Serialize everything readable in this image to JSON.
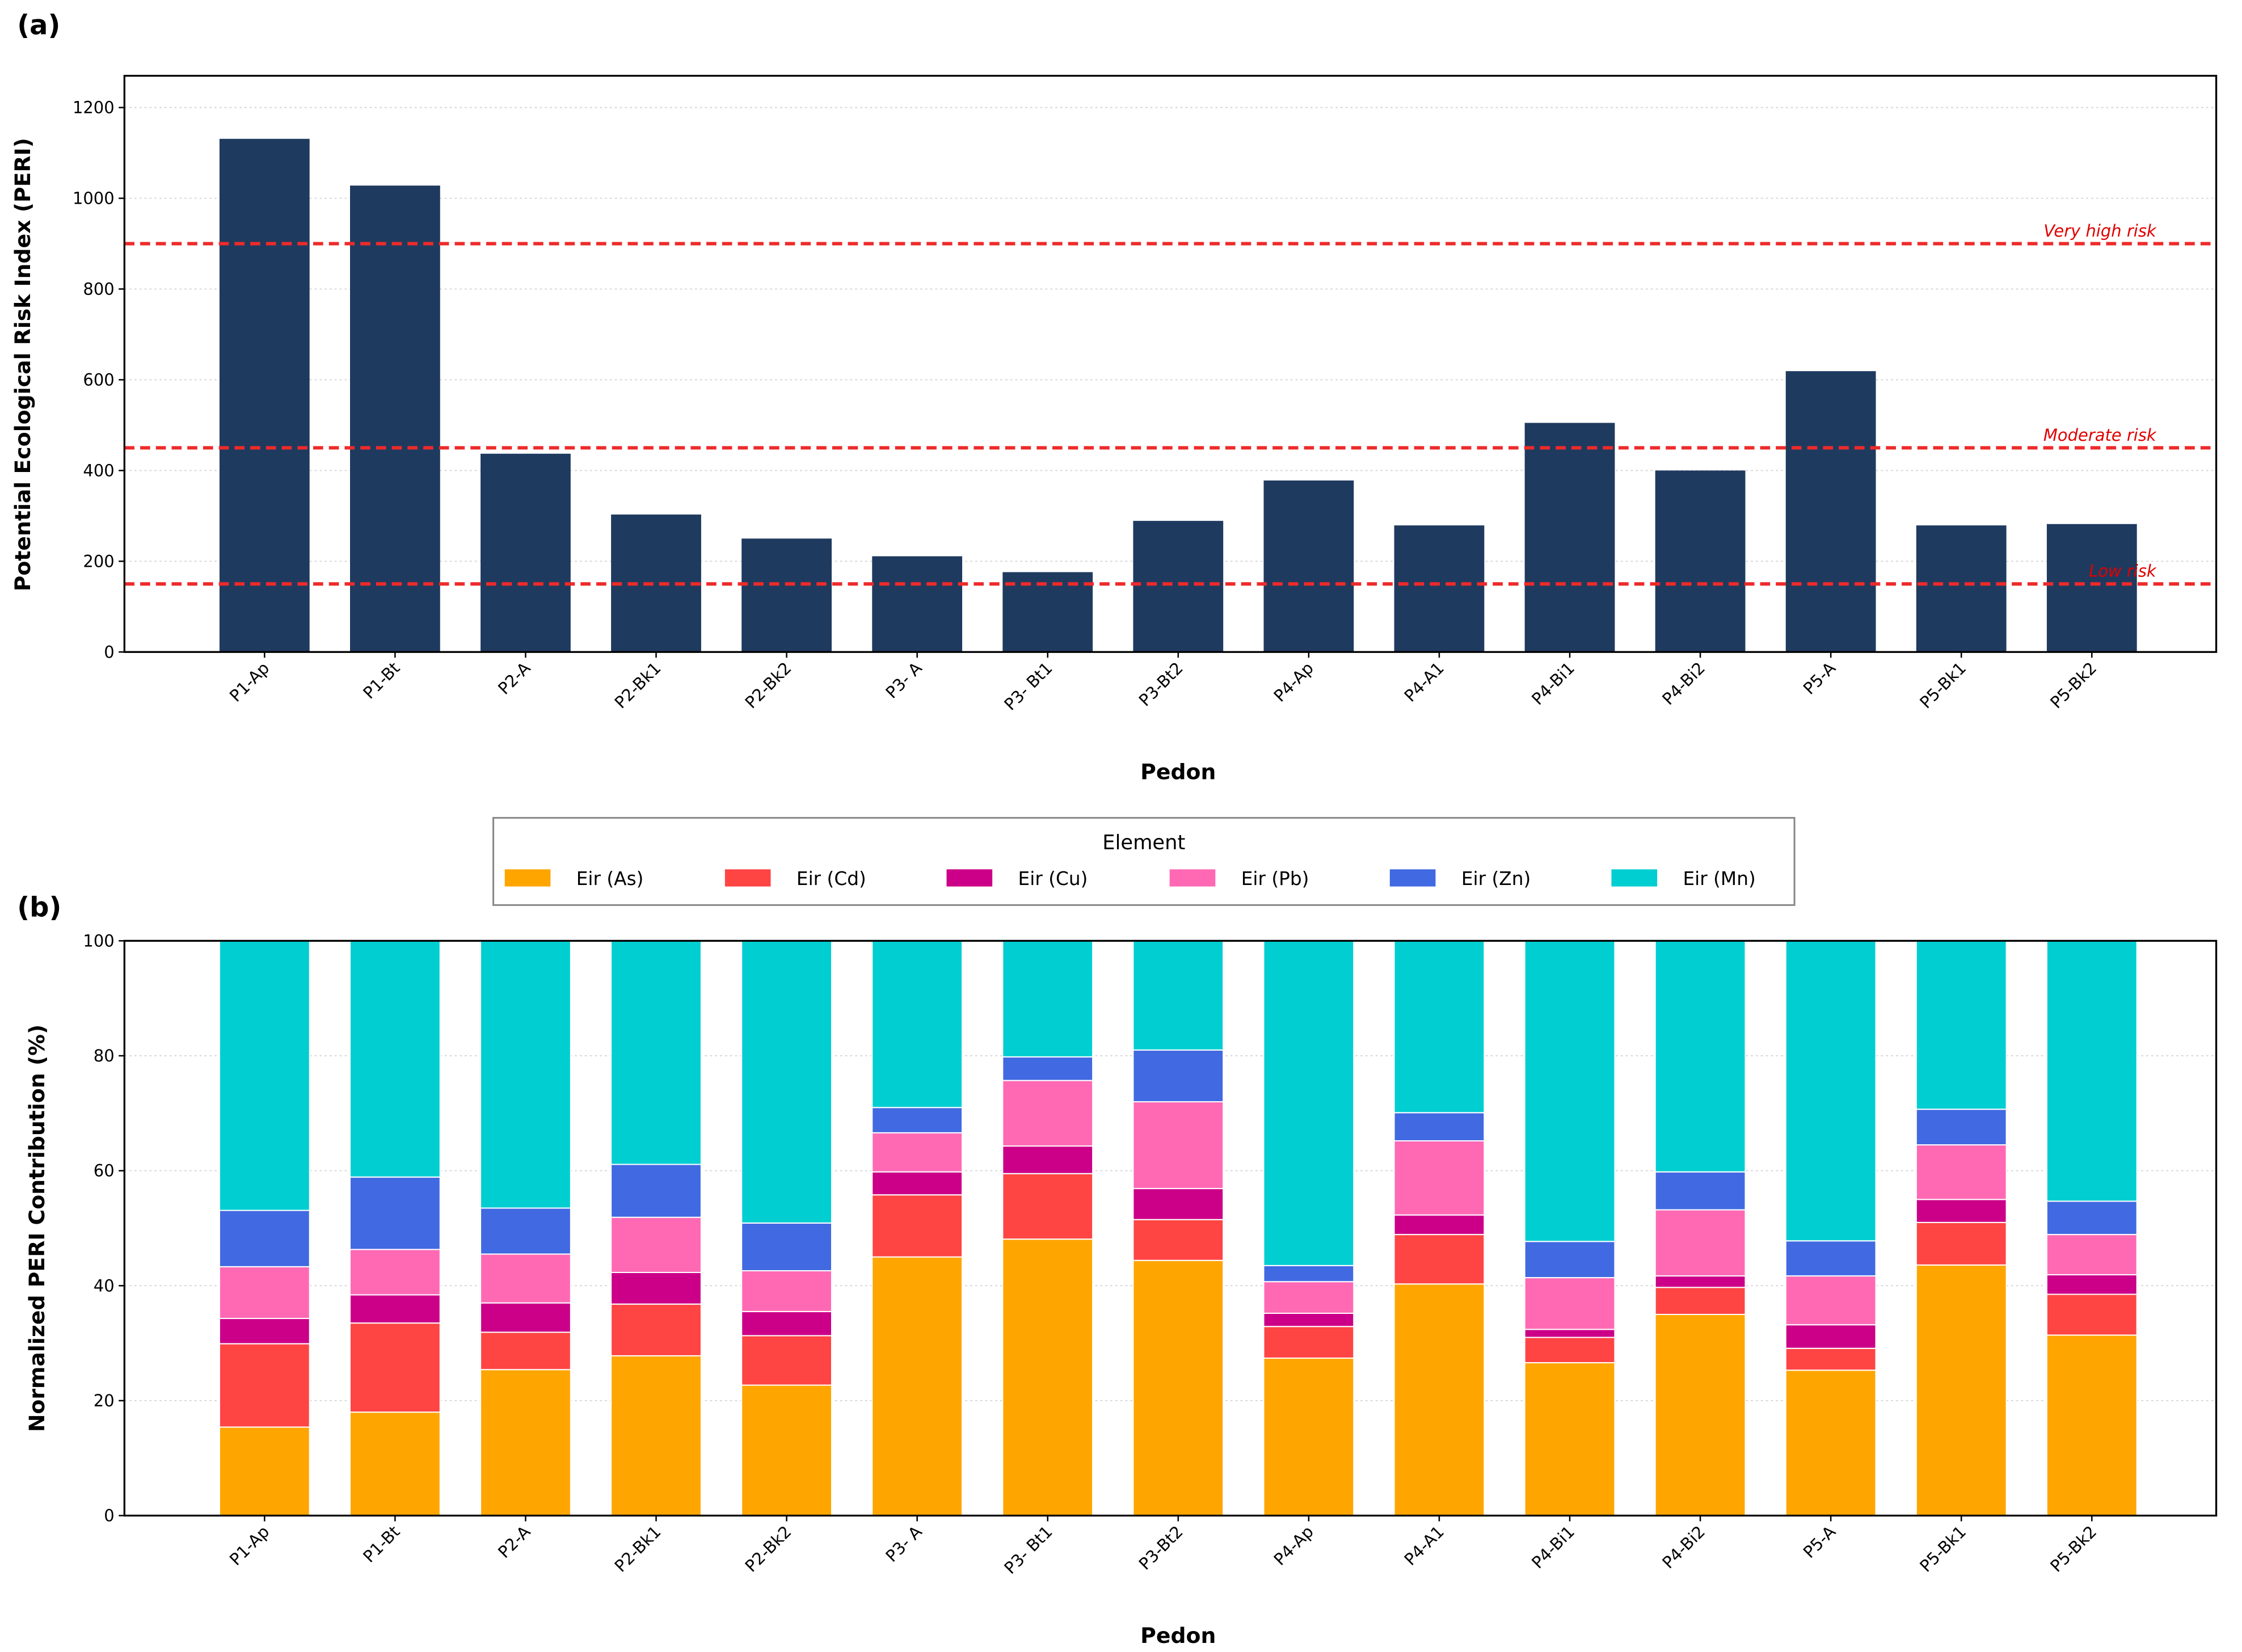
{
  "chart_data": [
    {
      "type": "bar",
      "panel_label": "(a)",
      "xlabel": "Pedon",
      "ylabel": "Potential Ecological Risk Index (PERI)",
      "ylim": [
        0,
        1270
      ],
      "yticks": [
        0,
        200,
        400,
        600,
        800,
        1000,
        1200
      ],
      "grid": true,
      "categories": [
        "P1-Ap",
        "P1-Bt",
        "P2-A",
        "P2-Bk1",
        "P2-Bk2",
        "P3- A",
        "P3- Bt1",
        "P3-Bt2",
        "P4-Ap",
        "P4-A1",
        "P4-Bi1",
        "P4-Bi2",
        "P5-A",
        "P5-Bk1",
        "P5-Bk2"
      ],
      "values": [
        1131,
        1028,
        437,
        303,
        250,
        211,
        176,
        289,
        378,
        279,
        505,
        400,
        619,
        279,
        282
      ],
      "bar_color": "#1f3a5f",
      "thresholds": [
        {
          "label": "Very high risk",
          "value": 900
        },
        {
          "label": "Moderate risk",
          "value": 450
        },
        {
          "label": "Low risk",
          "value": 150
        }
      ],
      "threshold_color": "#ee2a2a"
    },
    {
      "type": "bar",
      "stacked": true,
      "panel_label": "(b)",
      "xlabel": "Pedon",
      "ylabel": "Normalized PERI Contribution (%)",
      "ylim": [
        0,
        100
      ],
      "yticks": [
        0,
        20,
        40,
        60,
        80,
        100
      ],
      "grid": true,
      "legend_title": "Element",
      "legend_position": "top-center",
      "categories": [
        "P1-Ap",
        "P1-Bt",
        "P2-A",
        "P2-Bk1",
        "P2-Bk2",
        "P3- A",
        "P3- Bt1",
        "P3-Bt2",
        "P4-Ap",
        "P4-A1",
        "P4-Bi1",
        "P4-Bi2",
        "P5-A",
        "P5-Bk1",
        "P5-Bk2"
      ],
      "series": [
        {
          "name": "Eir (As)",
          "color": "#ffa500",
          "values": [
            15.4,
            18.0,
            25.4,
            27.8,
            22.7,
            45.0,
            48.1,
            44.4,
            27.4,
            40.3,
            26.6,
            35.0,
            25.3,
            43.6,
            31.4
          ]
        },
        {
          "name": "Eir (Cd)",
          "color": "#ff4444",
          "values": [
            14.5,
            15.5,
            6.5,
            9.0,
            8.6,
            10.8,
            11.4,
            7.1,
            5.5,
            8.6,
            4.4,
            4.7,
            3.8,
            7.4,
            7.1
          ]
        },
        {
          "name": "Eir (Cu)",
          "color": "#cc0088",
          "values": [
            4.4,
            4.9,
            5.1,
            5.5,
            4.2,
            4.0,
            4.8,
            5.4,
            2.3,
            3.4,
            1.4,
            2.0,
            4.1,
            4.0,
            3.4
          ]
        },
        {
          "name": "Eir (Pb)",
          "color": "#ff69b4",
          "values": [
            9.0,
            7.9,
            8.5,
            9.6,
            7.1,
            6.8,
            11.4,
            15.1,
            5.5,
            12.9,
            9.0,
            11.5,
            8.5,
            9.5,
            7.0
          ]
        },
        {
          "name": "Eir (Zn)",
          "color": "#4169e1",
          "values": [
            9.8,
            12.6,
            8.0,
            9.2,
            8.3,
            4.4,
            4.1,
            9.0,
            2.8,
            4.9,
            6.3,
            6.6,
            6.1,
            6.2,
            5.8
          ]
        },
        {
          "name": "Eir (Mn)",
          "color": "#00ced1",
          "values": [
            46.9,
            41.1,
            46.5,
            38.9,
            49.1,
            29.0,
            20.2,
            19.0,
            56.5,
            29.9,
            52.3,
            40.2,
            52.2,
            29.3,
            45.3
          ]
        }
      ]
    }
  ]
}
